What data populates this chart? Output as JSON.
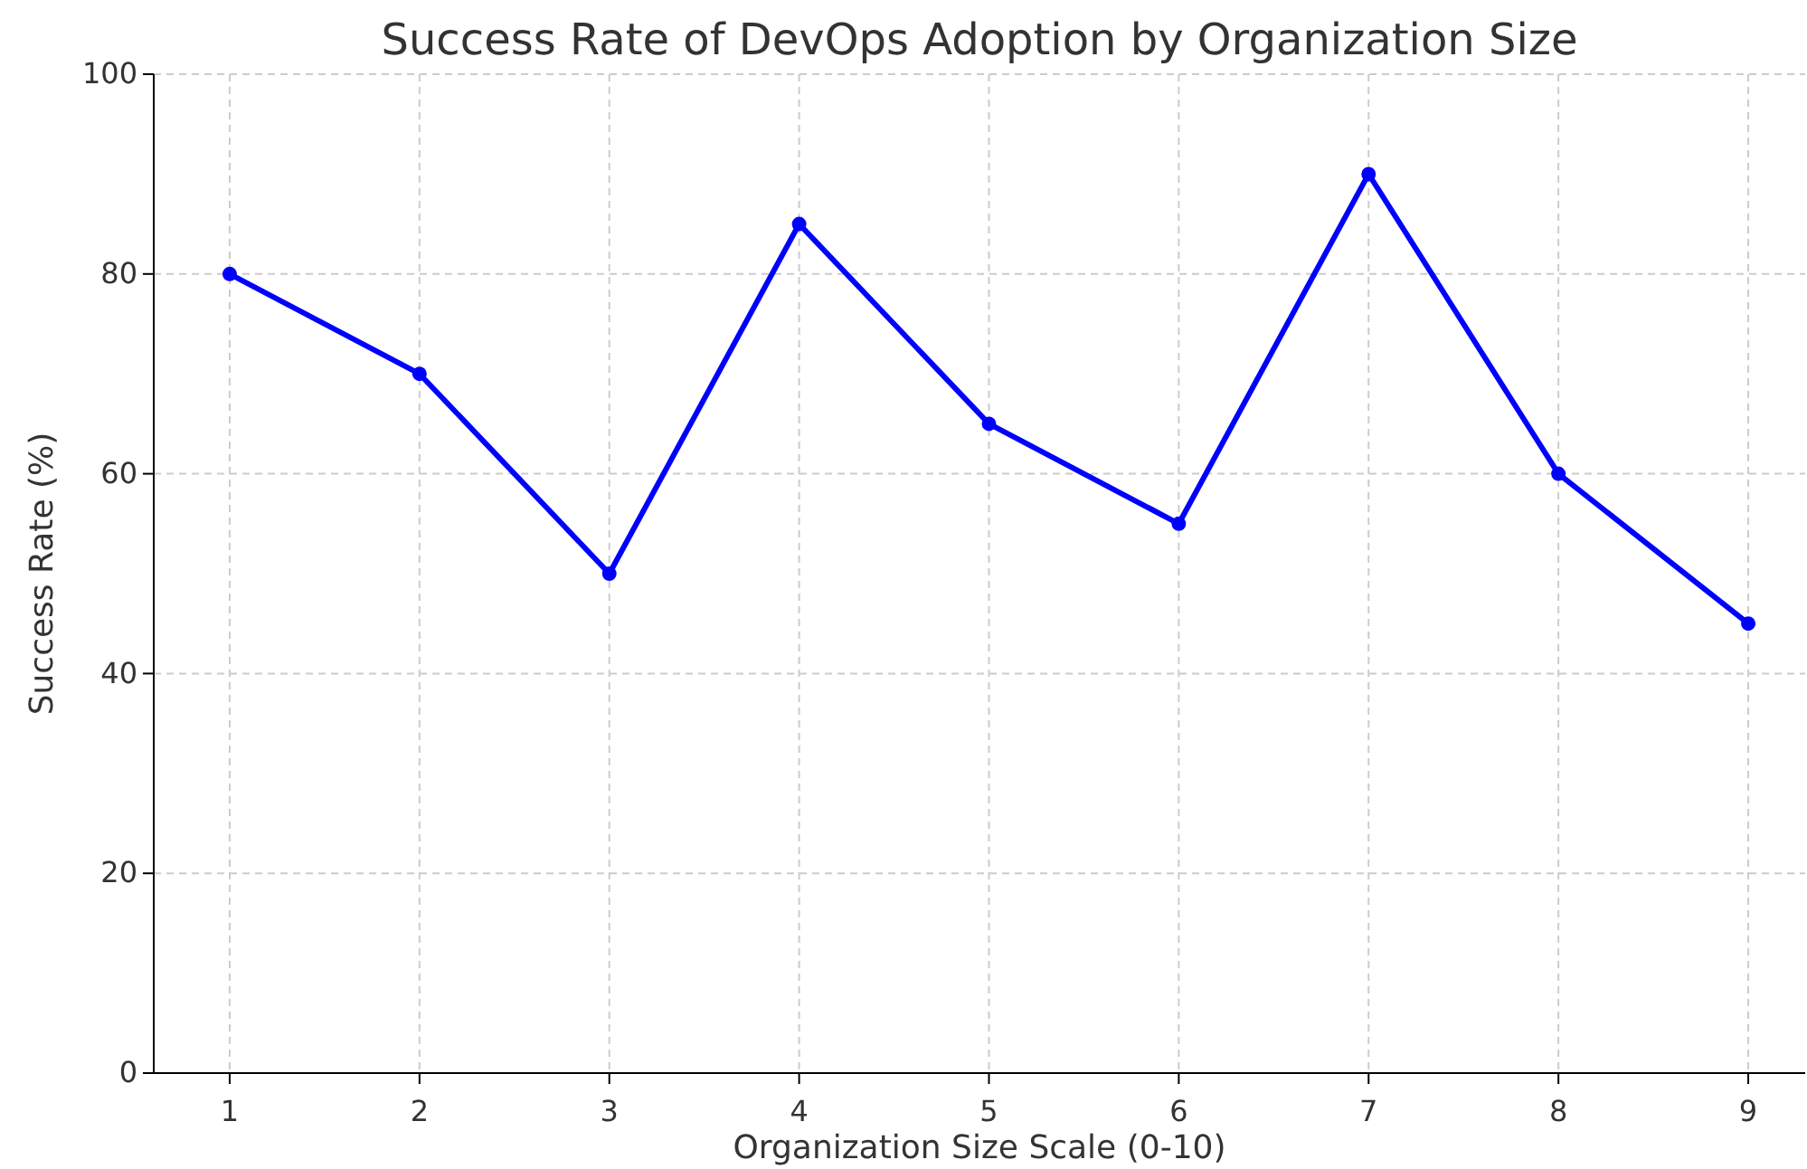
{
  "chart_data": {
    "type": "line",
    "title": "Success Rate of DevOps Adoption by Organization Size",
    "xlabel": "Organization Size Scale (0-10)",
    "ylabel": "Success Rate (%)",
    "x": [
      1,
      2,
      3,
      4,
      5,
      6,
      7,
      8,
      9
    ],
    "series": [
      {
        "color": "#0000ff",
        "values": [
          80,
          70,
          50,
          85,
          65,
          55,
          90,
          60,
          45
        ]
      }
    ],
    "xlim": [
      0.6,
      9.3
    ],
    "xticks": [
      1,
      2,
      3,
      4,
      5,
      6,
      7,
      8,
      9
    ],
    "ylim": [
      0,
      100
    ],
    "yticks": [
      0,
      20,
      40,
      60,
      80,
      100
    ],
    "grid": true,
    "marker": "circle",
    "line_style": "solid"
  }
}
